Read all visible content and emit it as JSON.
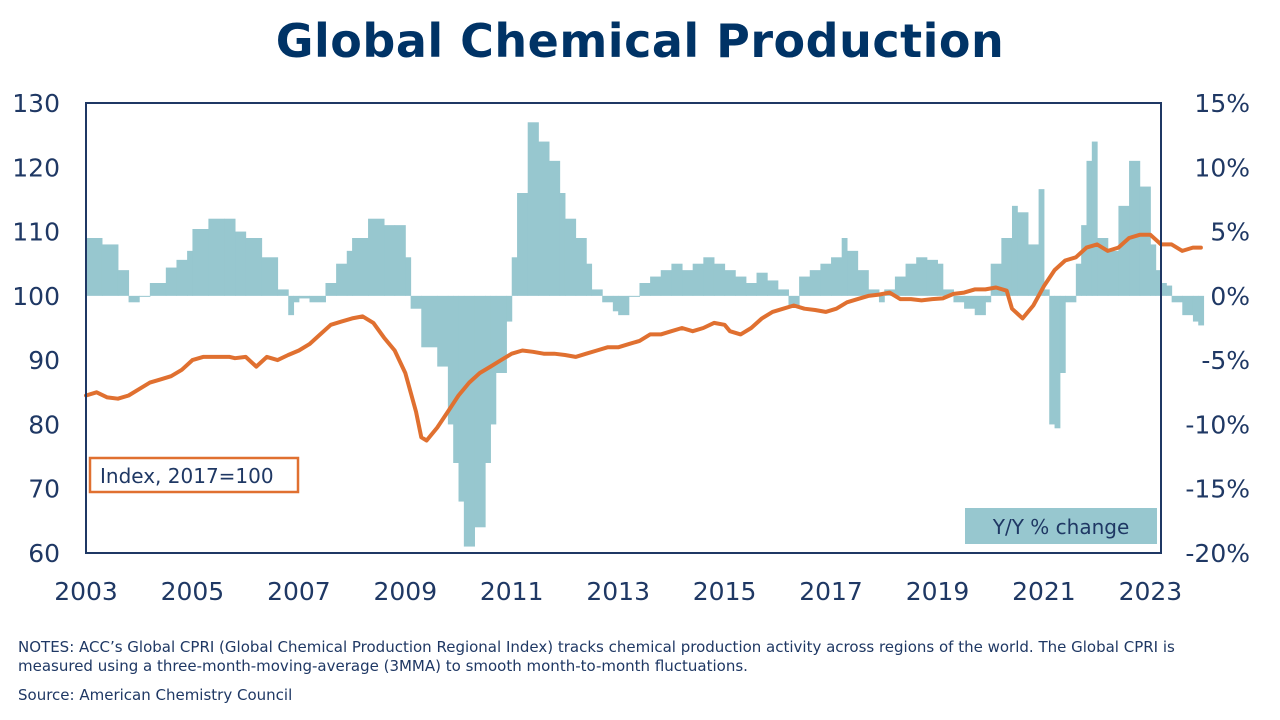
{
  "title": "Global Chemical Production",
  "notes": "NOTES: ACC’s Global CPRI (Global Chemical Production Regional Index) tracks chemical production activity across regions of the world. The Global CPRI is measured using a three-month-moving-average (3MMA) to smooth month-to-month fluctuations.",
  "source": "Source:  American Chemistry Council",
  "chart_data": {
    "type": "bar",
    "title": "Global Chemical Production",
    "index_label": "Index, 2017=100",
    "yoy_label": "Y/Y % change",
    "x_tick_labels": [
      "2003",
      "2005",
      "2007",
      "2009",
      "2011",
      "2013",
      "2015",
      "2017",
      "2019",
      "2021",
      "2023"
    ],
    "x_range": [
      2003,
      2023.2
    ],
    "y_left_range": [
      60,
      130
    ],
    "y_left_ticks": [
      "130",
      "120",
      "110",
      "100",
      "90",
      "80",
      "70",
      "60"
    ],
    "y_right_range": [
      -20,
      15
    ],
    "y_right_ticks": [
      "15%",
      "10%",
      "5%",
      "0%",
      "-5%",
      "-10%",
      "-15%",
      "-20%"
    ],
    "colors": {
      "index_line": "#e07030",
      "yoy_bars": "#97c7cf",
      "frame": "#1f3864",
      "title": "#003366"
    },
    "series": [
      {
        "name": "Y/Y % change",
        "type": "bar",
        "points": [
          [
            2003.0,
            4.5
          ],
          [
            2003.3,
            4.0
          ],
          [
            2003.6,
            2.0
          ],
          [
            2003.8,
            -0.5
          ],
          [
            2004.0,
            0.0
          ],
          [
            2004.2,
            1.0
          ],
          [
            2004.5,
            2.2
          ],
          [
            2004.7,
            2.8
          ],
          [
            2004.9,
            3.5
          ],
          [
            2005.0,
            5.2
          ],
          [
            2005.3,
            6.0
          ],
          [
            2005.6,
            6.0
          ],
          [
            2005.8,
            5.0
          ],
          [
            2006.0,
            4.5
          ],
          [
            2006.3,
            3.0
          ],
          [
            2006.6,
            0.5
          ],
          [
            2006.8,
            -1.5
          ],
          [
            2006.9,
            -0.5
          ],
          [
            2007.0,
            -0.2
          ],
          [
            2007.2,
            -0.5
          ],
          [
            2007.5,
            1.0
          ],
          [
            2007.7,
            2.5
          ],
          [
            2007.9,
            3.5
          ],
          [
            2008.0,
            4.5
          ],
          [
            2008.3,
            6.0
          ],
          [
            2008.6,
            5.5
          ],
          [
            2008.8,
            5.5
          ],
          [
            2009.0,
            3.0
          ],
          [
            2009.1,
            -1.0
          ],
          [
            2009.3,
            -4.0
          ],
          [
            2009.6,
            -5.5
          ],
          [
            2009.8,
            -10.0
          ],
          [
            2009.9,
            -13.0
          ],
          [
            2010.0,
            -16.0
          ],
          [
            2010.1,
            -19.5
          ],
          [
            2010.3,
            -18.0
          ],
          [
            2010.5,
            -13.0
          ],
          [
            2010.6,
            -10.0
          ],
          [
            2010.7,
            -6.0
          ],
          [
            2010.9,
            -2.0
          ],
          [
            2011.0,
            3.0
          ],
          [
            2011.1,
            8.0
          ],
          [
            2011.3,
            13.5
          ],
          [
            2011.5,
            12.0
          ],
          [
            2011.7,
            10.5
          ],
          [
            2011.9,
            8.0
          ],
          [
            2012.0,
            6.0
          ],
          [
            2012.2,
            4.5
          ],
          [
            2012.4,
            2.5
          ],
          [
            2012.5,
            0.5
          ],
          [
            2012.7,
            -0.5
          ],
          [
            2012.9,
            -1.2
          ],
          [
            2013.0,
            -1.5
          ],
          [
            2013.2,
            0.0
          ],
          [
            2013.4,
            1.0
          ],
          [
            2013.6,
            1.5
          ],
          [
            2013.8,
            2.0
          ],
          [
            2014.0,
            2.5
          ],
          [
            2014.2,
            2.0
          ],
          [
            2014.4,
            2.5
          ],
          [
            2014.6,
            3.0
          ],
          [
            2014.8,
            2.5
          ],
          [
            2015.0,
            2.0
          ],
          [
            2015.2,
            1.5
          ],
          [
            2015.4,
            1.0
          ],
          [
            2015.6,
            1.8
          ],
          [
            2015.8,
            1.2
          ],
          [
            2016.0,
            0.5
          ],
          [
            2016.2,
            -0.8
          ],
          [
            2016.4,
            1.5
          ],
          [
            2016.6,
            2.0
          ],
          [
            2016.8,
            2.5
          ],
          [
            2017.0,
            3.0
          ],
          [
            2017.2,
            4.5
          ],
          [
            2017.3,
            3.5
          ],
          [
            2017.5,
            2.0
          ],
          [
            2017.7,
            0.5
          ],
          [
            2017.9,
            -0.5
          ],
          [
            2018.0,
            0.5
          ],
          [
            2018.2,
            1.5
          ],
          [
            2018.4,
            2.5
          ],
          [
            2018.6,
            3.0
          ],
          [
            2018.8,
            2.8
          ],
          [
            2019.0,
            2.5
          ],
          [
            2019.1,
            0.5
          ],
          [
            2019.3,
            -0.5
          ],
          [
            2019.5,
            -1.0
          ],
          [
            2019.7,
            -1.5
          ],
          [
            2019.9,
            -0.5
          ],
          [
            2020.0,
            2.5
          ],
          [
            2020.2,
            4.5
          ],
          [
            2020.4,
            7.0
          ],
          [
            2020.5,
            6.5
          ],
          [
            2020.7,
            4.0
          ],
          [
            2020.9,
            8.3
          ],
          [
            2021.0,
            0.5
          ],
          [
            2021.1,
            -10.0
          ],
          [
            2021.2,
            -10.3
          ],
          [
            2021.3,
            -6.0
          ],
          [
            2021.4,
            -0.5
          ],
          [
            2021.6,
            2.5
          ],
          [
            2021.7,
            5.5
          ],
          [
            2021.8,
            10.5
          ],
          [
            2021.9,
            12.0
          ],
          [
            2022.0,
            4.5
          ],
          [
            2022.2,
            3.5
          ],
          [
            2022.4,
            7.0
          ],
          [
            2022.6,
            10.5
          ],
          [
            2022.8,
            8.5
          ],
          [
            2023.0,
            4.0
          ],
          [
            2023.1,
            2.0
          ],
          [
            2023.2,
            1.0
          ],
          [
            2023.3,
            0.8
          ],
          [
            2023.4,
            -0.5
          ],
          [
            2023.6,
            -1.5
          ],
          [
            2023.8,
            -2.0
          ],
          [
            2023.9,
            -2.3
          ]
        ]
      },
      {
        "name": "Index, 2017=100",
        "type": "line",
        "points": [
          [
            2003.0,
            84.5
          ],
          [
            2003.2,
            85.0
          ],
          [
            2003.4,
            84.2
          ],
          [
            2003.6,
            84.0
          ],
          [
            2003.8,
            84.5
          ],
          [
            2004.0,
            85.5
          ],
          [
            2004.2,
            86.5
          ],
          [
            2004.4,
            87.0
          ],
          [
            2004.6,
            87.5
          ],
          [
            2004.8,
            88.5
          ],
          [
            2005.0,
            90.0
          ],
          [
            2005.2,
            90.5
          ],
          [
            2005.5,
            90.5
          ],
          [
            2005.7,
            90.5
          ],
          [
            2005.8,
            90.3
          ],
          [
            2006.0,
            90.5
          ],
          [
            2006.2,
            89.0
          ],
          [
            2006.4,
            90.5
          ],
          [
            2006.6,
            90.0
          ],
          [
            2006.8,
            90.8
          ],
          [
            2007.0,
            91.5
          ],
          [
            2007.2,
            92.5
          ],
          [
            2007.4,
            94.0
          ],
          [
            2007.6,
            95.5
          ],
          [
            2007.8,
            96.0
          ],
          [
            2008.0,
            96.5
          ],
          [
            2008.2,
            96.8
          ],
          [
            2008.4,
            95.8
          ],
          [
            2008.6,
            93.5
          ],
          [
            2008.8,
            91.5
          ],
          [
            2009.0,
            88.0
          ],
          [
            2009.2,
            82.0
          ],
          [
            2009.3,
            78.0
          ],
          [
            2009.4,
            77.5
          ],
          [
            2009.6,
            79.5
          ],
          [
            2009.8,
            82.0
          ],
          [
            2010.0,
            84.5
          ],
          [
            2010.2,
            86.5
          ],
          [
            2010.4,
            88.0
          ],
          [
            2010.6,
            89.0
          ],
          [
            2010.8,
            90.0
          ],
          [
            2011.0,
            91.0
          ],
          [
            2011.2,
            91.5
          ],
          [
            2011.4,
            91.3
          ],
          [
            2011.6,
            91.0
          ],
          [
            2011.8,
            91.0
          ],
          [
            2012.0,
            90.8
          ],
          [
            2012.2,
            90.5
          ],
          [
            2012.4,
            91.0
          ],
          [
            2012.6,
            91.5
          ],
          [
            2012.8,
            92.0
          ],
          [
            2013.0,
            92.0
          ],
          [
            2013.2,
            92.5
          ],
          [
            2013.4,
            93.0
          ],
          [
            2013.6,
            94.0
          ],
          [
            2013.8,
            94.0
          ],
          [
            2014.0,
            94.5
          ],
          [
            2014.2,
            95.0
          ],
          [
            2014.4,
            94.5
          ],
          [
            2014.6,
            95.0
          ],
          [
            2014.8,
            95.8
          ],
          [
            2015.0,
            95.5
          ],
          [
            2015.1,
            94.5
          ],
          [
            2015.3,
            94.0
          ],
          [
            2015.5,
            95.0
          ],
          [
            2015.7,
            96.5
          ],
          [
            2015.9,
            97.5
          ],
          [
            2016.1,
            98.0
          ],
          [
            2016.3,
            98.5
          ],
          [
            2016.5,
            98.0
          ],
          [
            2016.7,
            97.8
          ],
          [
            2016.9,
            97.5
          ],
          [
            2017.1,
            98.0
          ],
          [
            2017.3,
            99.0
          ],
          [
            2017.5,
            99.5
          ],
          [
            2017.7,
            100.0
          ],
          [
            2017.9,
            100.2
          ],
          [
            2018.1,
            100.5
          ],
          [
            2018.3,
            99.5
          ],
          [
            2018.5,
            99.5
          ],
          [
            2018.7,
            99.3
          ],
          [
            2018.9,
            99.5
          ],
          [
            2019.1,
            99.6
          ],
          [
            2019.3,
            100.3
          ],
          [
            2019.5,
            100.5
          ],
          [
            2019.7,
            101.0
          ],
          [
            2019.9,
            101.0
          ],
          [
            2020.1,
            101.3
          ],
          [
            2020.3,
            100.8
          ],
          [
            2020.4,
            98.0
          ],
          [
            2020.6,
            96.5
          ],
          [
            2020.8,
            98.5
          ],
          [
            2021.0,
            101.5
          ],
          [
            2021.2,
            104.0
          ],
          [
            2021.4,
            105.5
          ],
          [
            2021.6,
            106.0
          ],
          [
            2021.8,
            107.5
          ],
          [
            2022.0,
            108.0
          ],
          [
            2022.2,
            107.0
          ],
          [
            2022.4,
            107.5
          ],
          [
            2022.6,
            109.0
          ],
          [
            2022.8,
            109.5
          ],
          [
            2023.0,
            109.5
          ],
          [
            2023.2,
            108.0
          ],
          [
            2023.4,
            108.0
          ],
          [
            2023.6,
            107.0
          ],
          [
            2023.8,
            107.5
          ],
          [
            2023.95,
            107.5
          ]
        ]
      }
    ]
  }
}
